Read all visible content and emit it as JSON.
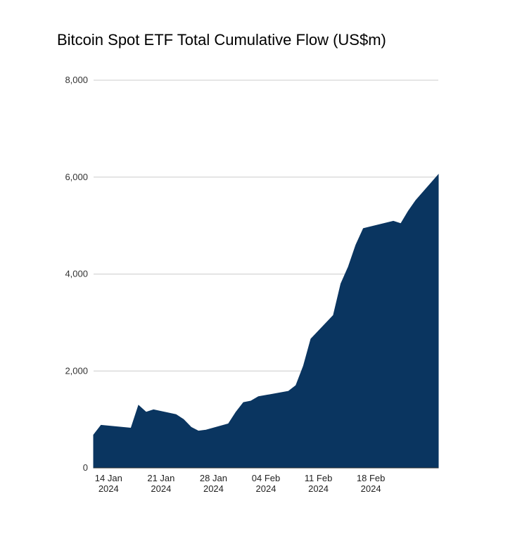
{
  "chart_data": {
    "type": "area",
    "title": "Bitcoin Spot ETF Total Cumulative Flow (US$m)",
    "xlabel": "",
    "ylabel": "",
    "ylim": [
      0,
      8000
    ],
    "yticks": [
      {
        "value": 0,
        "label": "0"
      },
      {
        "value": 2000,
        "label": "2,000"
      },
      {
        "value": 4000,
        "label": "4,000"
      },
      {
        "value": 6000,
        "label": "6,000"
      },
      {
        "value": 8000,
        "label": "8,000"
      }
    ],
    "xlim": [
      0,
      46
    ],
    "xticks": [
      {
        "day": 2,
        "line1": "14 Jan",
        "line2": "2024"
      },
      {
        "day": 9,
        "line1": "21 Jan",
        "line2": "2024"
      },
      {
        "day": 16,
        "line1": "28 Jan",
        "line2": "2024"
      },
      {
        "day": 23,
        "line1": "04 Feb",
        "line2": "2024"
      },
      {
        "day": 30,
        "line1": "11 Feb",
        "line2": "2024"
      },
      {
        "day": 37,
        "line1": "18 Feb",
        "line2": "2024"
      }
    ],
    "x_unit": "days since 12 Jan 2024",
    "series": [
      {
        "name": "Total Cumulative Flow",
        "color": "#0a3560",
        "x": [
          0,
          1,
          5,
          6,
          7,
          8,
          11,
          12,
          13,
          14,
          15,
          18,
          19,
          20,
          21,
          22,
          26,
          27,
          28,
          29,
          32,
          33,
          34,
          35,
          36,
          40,
          41,
          42,
          43,
          46
        ],
        "values": [
          680,
          880,
          820,
          1290,
          1150,
          1200,
          1100,
          1000,
          840,
          760,
          780,
          910,
          1150,
          1350,
          1380,
          1470,
          1580,
          1700,
          2100,
          2660,
          3150,
          3800,
          4150,
          4600,
          4940,
          5090,
          5040,
          5300,
          5520,
          6050
        ]
      }
    ]
  }
}
